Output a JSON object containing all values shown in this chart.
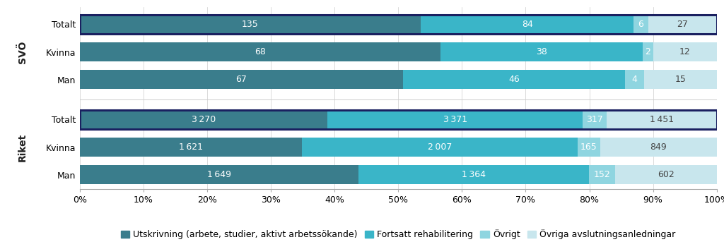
{
  "groups": [
    {
      "label": "SVÖ",
      "rows": [
        {
          "name": "Totalt",
          "values": [
            135,
            84,
            6,
            27
          ],
          "bold_border": true
        },
        {
          "name": "Kvinna",
          "values": [
            68,
            38,
            2,
            12
          ],
          "bold_border": false
        },
        {
          "name": "Man",
          "values": [
            67,
            46,
            4,
            15
          ],
          "bold_border": false
        }
      ]
    },
    {
      "label": "Riket",
      "rows": [
        {
          "name": "Totalt",
          "values": [
            3270,
            3371,
            317,
            1451
          ],
          "bold_border": true
        },
        {
          "name": "Kvinna",
          "values": [
            1621,
            2007,
            165,
            849
          ],
          "bold_border": false
        },
        {
          "name": "Man",
          "values": [
            1649,
            1364,
            152,
            602
          ],
          "bold_border": false
        }
      ]
    }
  ],
  "colors": [
    "#3a7d8c",
    "#3ab5c8",
    "#8fd5e0",
    "#c8e6ed"
  ],
  "legend_labels": [
    "Utskrivning (arbete, studier, aktivt arbetssökande)",
    "Fortsatt rehabilitering",
    "Övrigt",
    "Övriga avslutningsanledningar"
  ],
  "border_color": "#1a2060",
  "background_color": "#ffffff",
  "text_color_on_bar": "#ffffff",
  "text_color_last": "#444444",
  "bar_height": 0.62,
  "fontsize_bar": 9,
  "fontsize_tick": 9,
  "fontsize_legend": 9,
  "fontsize_grouplabel": 10
}
